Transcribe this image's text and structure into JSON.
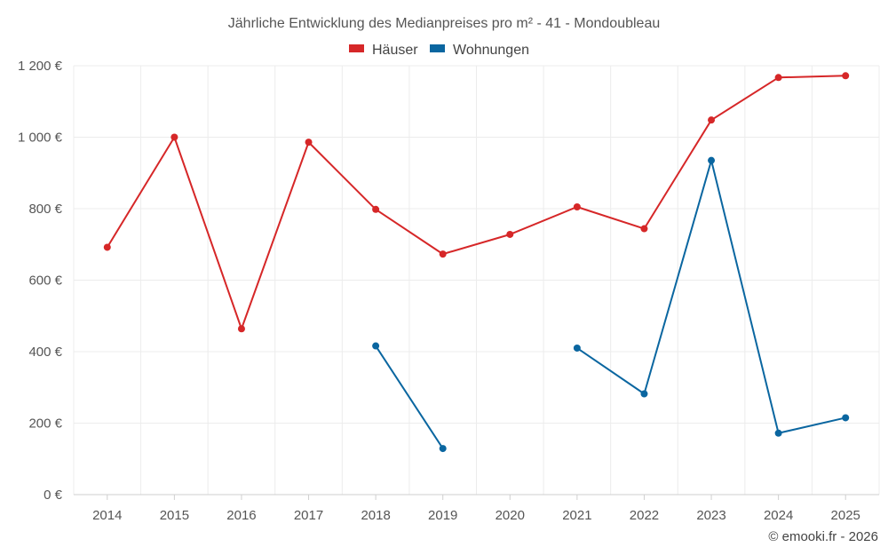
{
  "chart_data": {
    "type": "line",
    "title": "Jährliche Entwicklung des Medianpreises pro m² - 41 - Mondoubleau",
    "categories": [
      "2014",
      "2015",
      "2016",
      "2017",
      "2018",
      "2019",
      "2020",
      "2021",
      "2022",
      "2023",
      "2024",
      "2025"
    ],
    "ylim": [
      0,
      1200
    ],
    "yticks": [
      0,
      200,
      400,
      600,
      800,
      1000,
      1200
    ],
    "ytick_labels": [
      "0 €",
      "200 €",
      "400 €",
      "600 €",
      "800 €",
      "1 000 €",
      "1 200 €"
    ],
    "grid": true,
    "legend_position": "top-center",
    "series": [
      {
        "name": "Häuser",
        "color": "#d62728",
        "values": [
          692,
          1000,
          464,
          986,
          798,
          673,
          728,
          805,
          744,
          1048,
          1167,
          1172
        ]
      },
      {
        "name": "Wohnungen",
        "color": "#0a66a0",
        "values": [
          null,
          null,
          null,
          null,
          416,
          129,
          null,
          410,
          282,
          935,
          172,
          215
        ]
      }
    ],
    "copyright": "© emooki.fr - 2026"
  }
}
